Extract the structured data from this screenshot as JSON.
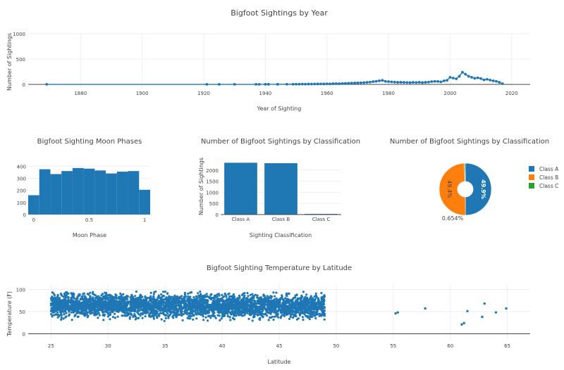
{
  "colors": {
    "blue": "#1f77b4",
    "orange": "#ff7f0e",
    "green": "#2ca02c",
    "grid": "#eeeeee",
    "axis": "#444444",
    "text": "#444444"
  },
  "chart_data": [
    {
      "type": "line",
      "title": "Bigfoot Sightings by Year",
      "xlabel": "Year of Sighting",
      "ylabel": "Number of Sightings",
      "xlim": [
        1863,
        2026
      ],
      "ylim": [
        -70,
        1000
      ],
      "xticks": [
        1880,
        1900,
        1920,
        1940,
        1960,
        1980,
        2000,
        2020
      ],
      "yticks": [
        0,
        500,
        1000
      ],
      "x": [
        1869,
        1921,
        1925,
        1930,
        1937,
        1938,
        1940,
        1941,
        1944,
        1947,
        1949,
        1950,
        1951,
        1952,
        1953,
        1954,
        1955,
        1956,
        1957,
        1958,
        1959,
        1960,
        1961,
        1962,
        1963,
        1964,
        1965,
        1966,
        1967,
        1968,
        1969,
        1970,
        1971,
        1972,
        1973,
        1974,
        1975,
        1976,
        1977,
        1978,
        1979,
        1980,
        1981,
        1982,
        1983,
        1984,
        1985,
        1986,
        1987,
        1988,
        1989,
        1990,
        1991,
        1992,
        1993,
        1994,
        1995,
        1996,
        1997,
        1998,
        1999,
        2000,
        2001,
        2002,
        2003,
        2004,
        2005,
        2006,
        2007,
        2008,
        2009,
        2010,
        2011,
        2012,
        2013,
        2014,
        2015,
        2016,
        2017
      ],
      "values": [
        1,
        1,
        1,
        1,
        1,
        1,
        2,
        2,
        2,
        3,
        3,
        5,
        4,
        6,
        5,
        7,
        6,
        8,
        9,
        10,
        9,
        12,
        10,
        14,
        15,
        13,
        18,
        20,
        22,
        25,
        28,
        30,
        32,
        35,
        40,
        45,
        55,
        60,
        70,
        80,
        60,
        55,
        50,
        45,
        40,
        42,
        40,
        38,
        35,
        40,
        38,
        42,
        35,
        40,
        45,
        55,
        60,
        58,
        50,
        70,
        80,
        140,
        125,
        110,
        160,
        240,
        200,
        160,
        140,
        120,
        130,
        115,
        90,
        100,
        85,
        70,
        60,
        40,
        15
      ]
    },
    {
      "type": "bar",
      "title": "Bigfoot Sighting Moon Phases",
      "xlabel": "Moon Phase",
      "ylabel": "",
      "xlim": [
        -0.05,
        1.05
      ],
      "ylim": [
        0,
        460
      ],
      "xticks": [
        0,
        0.5,
        1
      ],
      "xtick_labels": [
        "0",
        "0.5",
        "1"
      ],
      "yticks": [
        0,
        100,
        200,
        300,
        400
      ],
      "bin_edges": [
        -0.05,
        0.05,
        0.15,
        0.25,
        0.35,
        0.45,
        0.55,
        0.65,
        0.75,
        0.85,
        0.95,
        1.05
      ],
      "values": [
        160,
        375,
        335,
        360,
        385,
        380,
        365,
        340,
        355,
        360,
        205
      ]
    },
    {
      "type": "bar",
      "title": "Number of Bigfoot Sightings by Classification",
      "xlabel": "Sighting Classification",
      "ylabel": "Number of Sightings",
      "ylim": [
        0,
        2500
      ],
      "yticks": [
        0,
        500,
        1000,
        1500,
        2000
      ],
      "categories": [
        "Class A",
        "Class B",
        "Class C"
      ],
      "values": [
        2330,
        2310,
        30
      ]
    },
    {
      "type": "pie",
      "title": "Number of Bigfoot Sightings by Classification",
      "labels": [
        "Class A",
        "Class B",
        "Class C"
      ],
      "values": [
        49.9,
        49.4,
        0.654
      ],
      "value_labels": [
        "49.9%",
        "49.4%",
        "0.654%"
      ],
      "hole": 0.3
    },
    {
      "type": "scatter",
      "title": "Bigfoot Sighting Temperature by Latitude",
      "xlabel": "Latitude",
      "ylabel": "Temperature (F)",
      "xlim": [
        23,
        67
      ],
      "ylim": [
        -15,
        110
      ],
      "xticks": [
        25,
        30,
        35,
        40,
        45,
        50,
        55,
        60,
        65
      ],
      "yticks": [
        0,
        50,
        100
      ],
      "dense_cloud": {
        "latitude_range": [
          25,
          49
        ],
        "temperature_range": [
          5,
          95
        ],
        "typical_temperature": 65,
        "approx_points": 4000
      },
      "outliers": {
        "x": [
          55.2,
          55.4,
          57.8,
          61.0,
          61.2,
          61.5,
          62.8,
          63.0,
          64.0,
          64.9
        ],
        "y": [
          46,
          48,
          57,
          21,
          24,
          51,
          38,
          68,
          48,
          57
        ]
      }
    }
  ]
}
